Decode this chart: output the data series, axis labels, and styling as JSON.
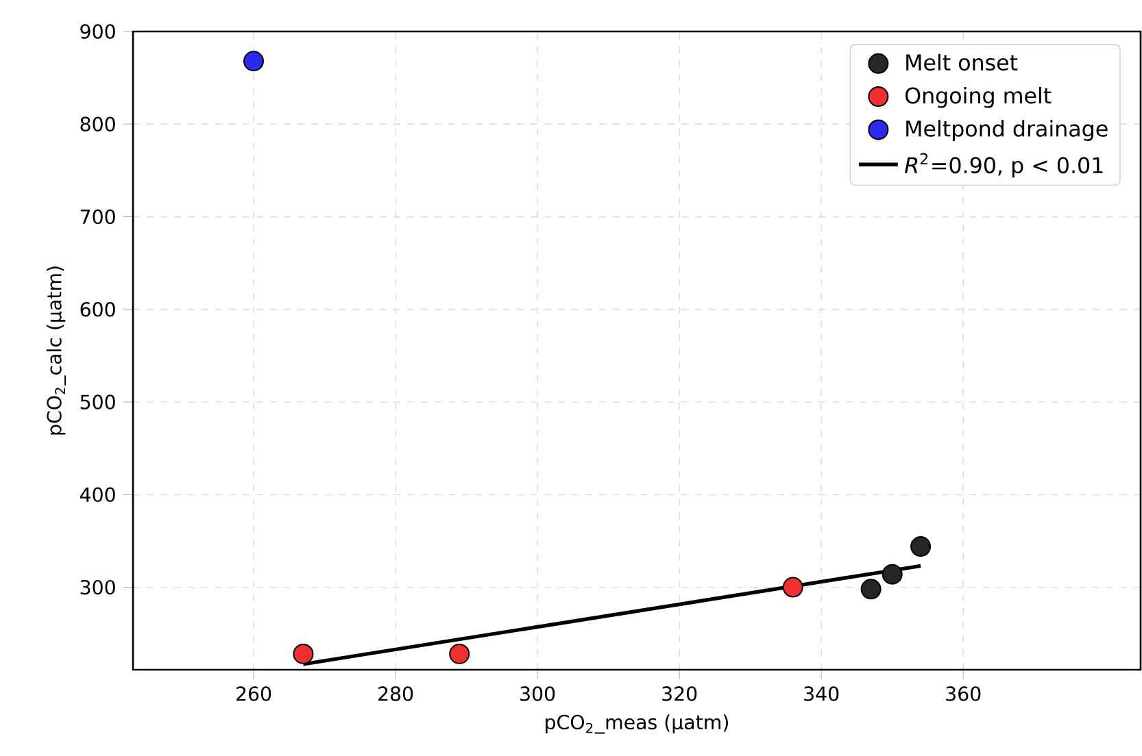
{
  "chart_data": {
    "type": "scatter",
    "xlabel": "pCO$_{2}$_meas (µatm)",
    "ylabel": "pCO$_{2}$_calc (µatm)",
    "xlim": [
      243,
      385
    ],
    "ylim": [
      211,
      900
    ],
    "xticks": [
      260,
      280,
      300,
      320,
      340,
      360
    ],
    "yticks": [
      300,
      400,
      500,
      600,
      700,
      800,
      900
    ],
    "grid": true,
    "legend": "top right",
    "marker": "circle",
    "series": [
      {
        "name": "Melt onset",
        "color": "#262626",
        "x": [
          347,
          350,
          354
        ],
        "values": [
          298,
          314,
          344
        ]
      },
      {
        "name": "Ongoing melt",
        "color": "#f03030",
        "x": [
          267,
          289,
          336
        ],
        "values": [
          228,
          228,
          300
        ]
      },
      {
        "name": "Meltpond drainage",
        "color": "#2a2af0",
        "x": [
          260
        ],
        "values": [
          868
        ]
      },
      {
        "name": "*R*$^{2}$=0.90, p < 0.01",
        "type": "line",
        "color": "#000000",
        "line_style": "solid",
        "marker": "none",
        "x": [
          267,
          354
        ],
        "values": [
          217,
          323
        ]
      }
    ]
  }
}
